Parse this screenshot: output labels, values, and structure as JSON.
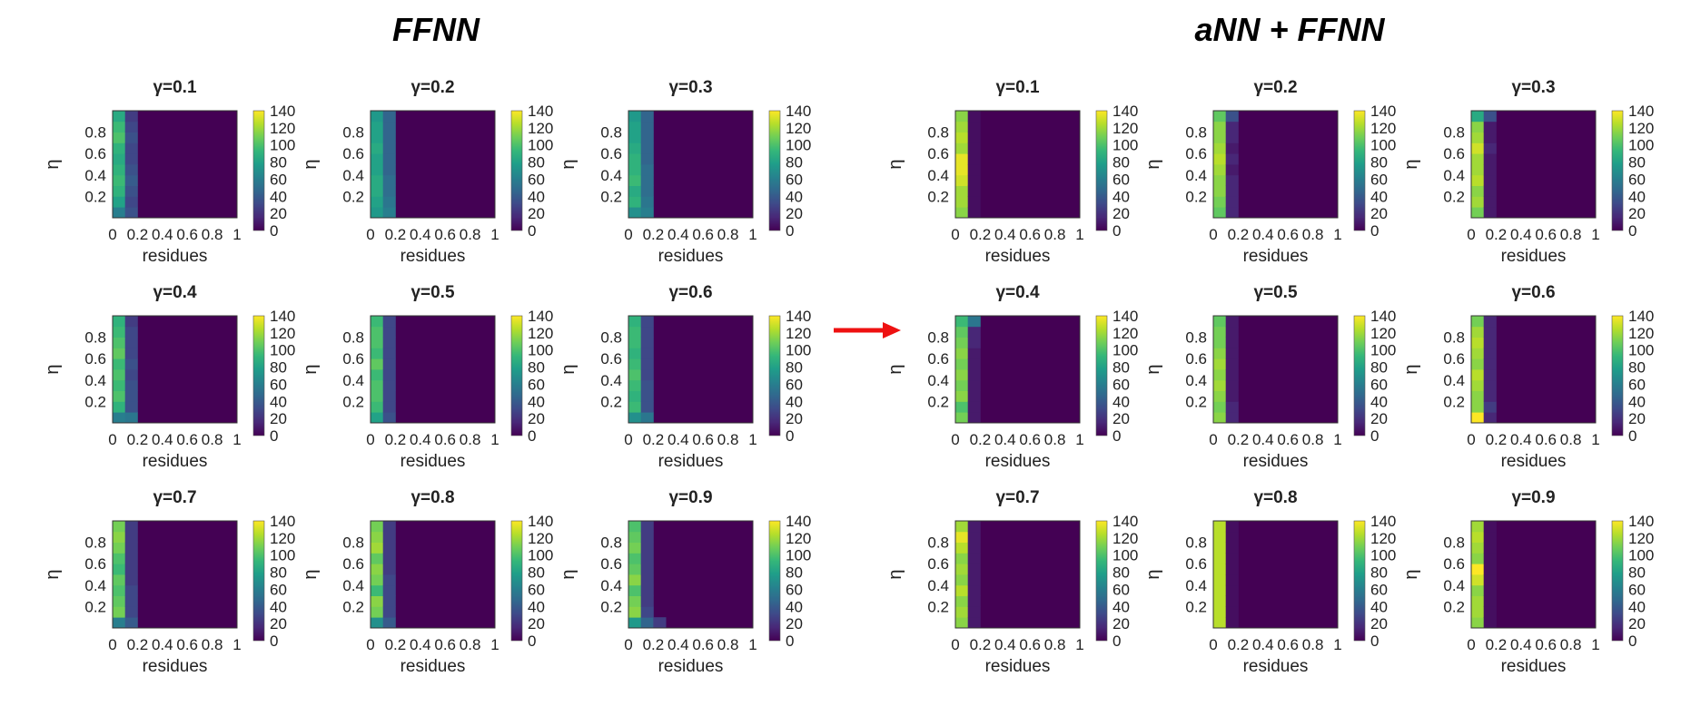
{
  "figure": {
    "left_title": "FFNN",
    "right_title": "aNN + FFNN",
    "arrow_color": "#ee1111"
  },
  "colormap": [
    "#440154",
    "#482878",
    "#3e4989",
    "#31688e",
    "#26828e",
    "#1f9e89",
    "#35b779",
    "#6ece58",
    "#b5de2b",
    "#fde725"
  ],
  "chart_data": [
    {
      "group": "FFNN",
      "type": "heatmap",
      "panels": [
        {
          "title": "γ=0.1",
          "values": [
            [
              60,
              80,
              90,
              95,
              90,
              85,
              90,
              100,
              95,
              85
            ],
            [
              35,
              30,
              35,
              40,
              35,
              30,
              30,
              35,
              30,
              25
            ]
          ]
        },
        {
          "title": "γ=0.2",
          "values": [
            [
              75,
              80,
              85,
              85,
              80,
              80,
              85,
              80,
              80,
              75
            ],
            [
              60,
              55,
              50,
              50,
              45,
              45,
              45,
              45,
              45,
              45
            ]
          ]
        },
        {
          "title": "γ=0.3",
          "values": [
            [
              70,
              90,
              85,
              95,
              90,
              90,
              85,
              80,
              80,
              75
            ],
            [
              60,
              55,
              50,
              50,
              50,
              45,
              45,
              45,
              45,
              45
            ]
          ]
        },
        {
          "title": "γ=0.4",
          "values": [
            [
              60,
              90,
              100,
              95,
              100,
              95,
              105,
              100,
              95,
              90
            ],
            [
              55,
              35,
              35,
              35,
              30,
              35,
              30,
              30,
              30,
              25
            ]
          ]
        },
        {
          "title": "γ=0.5",
          "values": [
            [
              80,
              95,
              100,
              100,
              95,
              105,
              95,
              100,
              100,
              95
            ],
            [
              35,
              30,
              30,
              30,
              30,
              30,
              30,
              30,
              30,
              30
            ]
          ]
        },
        {
          "title": "γ=0.6",
          "values": [
            [
              70,
              95,
              90,
              95,
              100,
              95,
              90,
              95,
              95,
              90
            ],
            [
              55,
              35,
              35,
              35,
              30,
              30,
              30,
              30,
              30,
              30
            ]
          ]
        },
        {
          "title": "γ=0.7",
          "values": [
            [
              60,
              110,
              105,
              100,
              105,
              95,
              100,
              110,
              115,
              110
            ],
            [
              40,
              30,
              30,
              30,
              25,
              25,
              25,
              25,
              25,
              25
            ]
          ]
        },
        {
          "title": "γ=0.8",
          "values": [
            [
              70,
              110,
              115,
              95,
              110,
              115,
              105,
              120,
              115,
              110
            ],
            [
              40,
              30,
              30,
              30,
              30,
              25,
              25,
              25,
              25,
              25
            ]
          ]
        },
        {
          "title": "γ=0.9",
          "values": [
            [
              75,
              115,
              110,
              100,
              115,
              105,
              100,
              110,
              105,
              100
            ],
            [
              45,
              30,
              25,
              25,
              25,
              25,
              25,
              25,
              25,
              25
            ]
          ],
          "extra": [
            {
              "row": 0,
              "col": 2,
              "value": 25
            }
          ]
        }
      ]
    },
    {
      "group": "aNN + FFNN",
      "type": "heatmap",
      "panels": [
        {
          "title": "γ=0.1",
          "values": [
            [
              115,
              120,
              120,
              130,
              135,
              135,
              120,
              125,
              120,
              115
            ],
            [
              5,
              5,
              5,
              5,
              5,
              5,
              5,
              5,
              5,
              5
            ]
          ]
        },
        {
          "title": "γ=0.2",
          "values": [
            [
              105,
              110,
              115,
              115,
              120,
              125,
              120,
              115,
              115,
              105
            ],
            [
              15,
              15,
              15,
              15,
              10,
              15,
              10,
              15,
              15,
              35
            ]
          ]
        },
        {
          "title": "γ=0.3",
          "values": [
            [
              110,
              120,
              115,
              125,
              120,
              120,
              130,
              120,
              115,
              85
            ],
            [
              10,
              10,
              10,
              10,
              10,
              10,
              15,
              10,
              10,
              35
            ]
          ]
        },
        {
          "title": "γ=0.4",
          "values": [
            [
              110,
              100,
              115,
              110,
              115,
              110,
              115,
              110,
              105,
              95
            ],
            [
              10,
              10,
              10,
              10,
              10,
              10,
              10,
              15,
              15,
              55
            ]
          ]
        },
        {
          "title": "γ=0.5",
          "values": [
            [
              115,
              110,
              115,
              120,
              115,
              120,
              115,
              110,
              110,
              105
            ],
            [
              15,
              15,
              10,
              10,
              10,
              10,
              10,
              10,
              10,
              10
            ]
          ]
        },
        {
          "title": "γ=0.6",
          "values": [
            [
              140,
              115,
              115,
              120,
              125,
              115,
              120,
              125,
              120,
              110
            ],
            [
              15,
              25,
              15,
              15,
              15,
              15,
              15,
              15,
              15,
              15
            ]
          ]
        },
        {
          "title": "γ=0.7",
          "values": [
            [
              115,
              120,
              115,
              125,
              115,
              120,
              115,
              125,
              135,
              120
            ],
            [
              10,
              10,
              10,
              10,
              10,
              10,
              10,
              10,
              10,
              10
            ]
          ]
        },
        {
          "title": "γ=0.8",
          "values": [
            [
              125,
              125,
              125,
              125,
              125,
              125,
              125,
              125,
              125,
              125
            ],
            [
              5,
              5,
              5,
              5,
              5,
              5,
              5,
              5,
              5,
              5
            ]
          ]
        },
        {
          "title": "γ=0.9",
          "values": [
            [
              115,
              120,
              120,
              115,
              130,
              140,
              115,
              120,
              125,
              120
            ],
            [
              5,
              5,
              5,
              5,
              5,
              5,
              5,
              5,
              5,
              5
            ]
          ]
        }
      ]
    }
  ],
  "axes": {
    "xlabel": "residues",
    "ylabel": "η",
    "xlim": [
      0,
      1
    ],
    "ylim": [
      0,
      1
    ],
    "x_tick_labels": [
      "0",
      "0.2",
      "0.4",
      "0.6",
      "0.8",
      "1"
    ],
    "y_tick_labels": [
      "0.2",
      "0.4",
      "0.6",
      "0.8"
    ],
    "colorbar_range": [
      0,
      140
    ],
    "colorbar_tick_labels": [
      "0",
      "20",
      "40",
      "60",
      "80",
      "100",
      "120",
      "140"
    ]
  }
}
